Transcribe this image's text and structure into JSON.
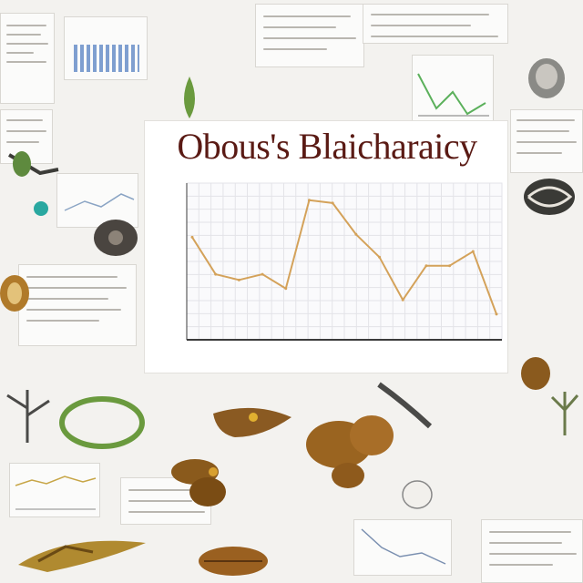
{
  "chart_data": {
    "type": "line",
    "title": "Obous's Blaicharaicy",
    "subtitle": "",
    "xlabel": "",
    "ylabel": "",
    "x": [
      1,
      2,
      3,
      4,
      5,
      6,
      7,
      8,
      9,
      10,
      11,
      12,
      13,
      14
    ],
    "values": [
      61,
      48,
      46,
      48,
      43,
      74,
      73,
      62,
      54,
      39,
      51,
      51,
      56,
      34
    ],
    "ylim": [
      25,
      80
    ],
    "grid": true,
    "legend": "none",
    "line_color": "#d4a25a"
  },
  "colors": {
    "title": "#5a1a14",
    "axis": "#3b3b3b",
    "grid": "#e3e3e8",
    "background": "#f3f2ef"
  },
  "decor": {
    "specimen_icons": [
      "beetle-icon",
      "seed-icon",
      "leaf-icon",
      "shell-icon",
      "insect-icon",
      "plant-icon"
    ]
  }
}
